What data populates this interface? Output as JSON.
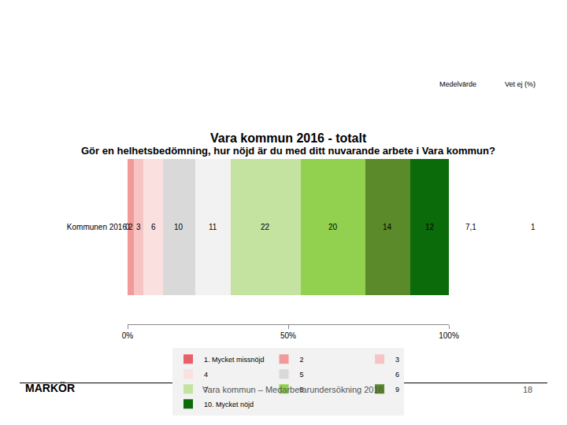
{
  "chart_data": {
    "type": "bar",
    "orientation": "horizontal",
    "stacked": true,
    "data_labels": true,
    "title": "Vara kommun 2016 - totalt",
    "subtitle": "Gör en helhetsbedömning, hur nöjd är du med ditt nuvarande arbete i Vara kommun?",
    "categories": [
      "Kommunen 2016"
    ],
    "series": [
      {
        "name": "1. Mycket missnöjd",
        "color": "#e8606a",
        "values": [
          0
        ]
      },
      {
        "name": "2",
        "color": "#f29a9a",
        "values": [
          2
        ]
      },
      {
        "name": "3",
        "color": "#f7c4c4",
        "values": [
          3
        ]
      },
      {
        "name": "4",
        "color": "#fbe0e0",
        "values": [
          6
        ]
      },
      {
        "name": "5",
        "color": "#d9d9d9",
        "values": [
          10
        ]
      },
      {
        "name": "6",
        "color": "#f2f2f2",
        "values": [
          11
        ]
      },
      {
        "name": "7",
        "color": "#c4e2a0",
        "values": [
          22
        ]
      },
      {
        "name": "8",
        "color": "#92d050",
        "values": [
          20
        ]
      },
      {
        "name": "9",
        "color": "#5a8a2a",
        "values": [
          14
        ]
      },
      {
        "name": "10. Mycket nöjd",
        "color": "#0b6b0b",
        "values": [
          12
        ]
      }
    ],
    "xlim": [
      0,
      100
    ],
    "xticks": [
      {
        "value": 0,
        "label": "0%"
      },
      {
        "value": 50,
        "label": "50%"
      },
      {
        "value": 100,
        "label": "100%"
      }
    ],
    "legend": "bottom",
    "grid": false,
    "columns": [
      {
        "header": "Medelvärde",
        "values": [
          7.1
        ],
        "value_labels": [
          "7,1"
        ]
      },
      {
        "header": "Vet ej (%)",
        "values": [
          1
        ]
      }
    ],
    "footer": {
      "logo": "MARKÖR",
      "text": "Vara kommun – Medarbetarundersökning 2016",
      "page": "18"
    }
  }
}
